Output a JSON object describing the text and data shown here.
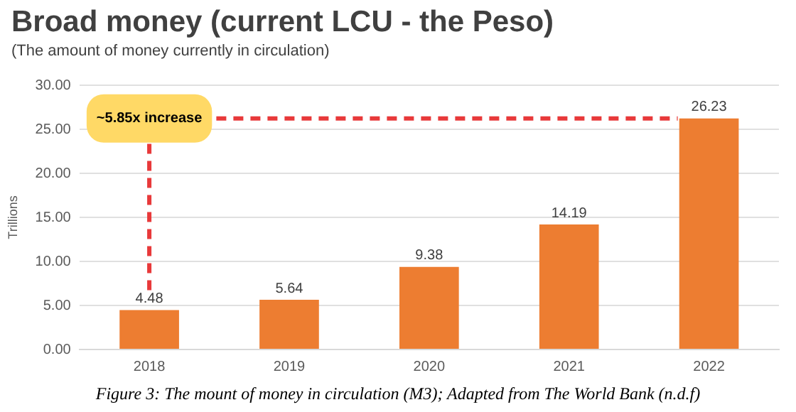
{
  "chart_data": {
    "type": "bar",
    "title": "Broad money (current LCU - the Peso)",
    "subtitle": "(The amount of money currently in circulation)",
    "ylabel": "Trillions",
    "categories": [
      "2018",
      "2019",
      "2020",
      "2021",
      "2022"
    ],
    "values": [
      4.48,
      5.64,
      9.38,
      14.19,
      26.23
    ],
    "color": "#ed7d31",
    "ylim": [
      0,
      30
    ],
    "yticks": [
      {
        "value": 0,
        "label": "0.00"
      },
      {
        "value": 5,
        "label": "5.00"
      },
      {
        "value": 10,
        "label": "10.00"
      },
      {
        "value": 15,
        "label": "15.00"
      },
      {
        "value": 20,
        "label": "20.00"
      },
      {
        "value": 25,
        "label": "25.00"
      },
      {
        "value": 30,
        "label": "30.00"
      }
    ],
    "grid": "y",
    "data_labels": true,
    "legend": false,
    "annotations": [
      "~5.85x increase",
      "Figure 3: The mount of money in circulation (M3); Adapted from The World Bank (n.d.f)"
    ]
  }
}
